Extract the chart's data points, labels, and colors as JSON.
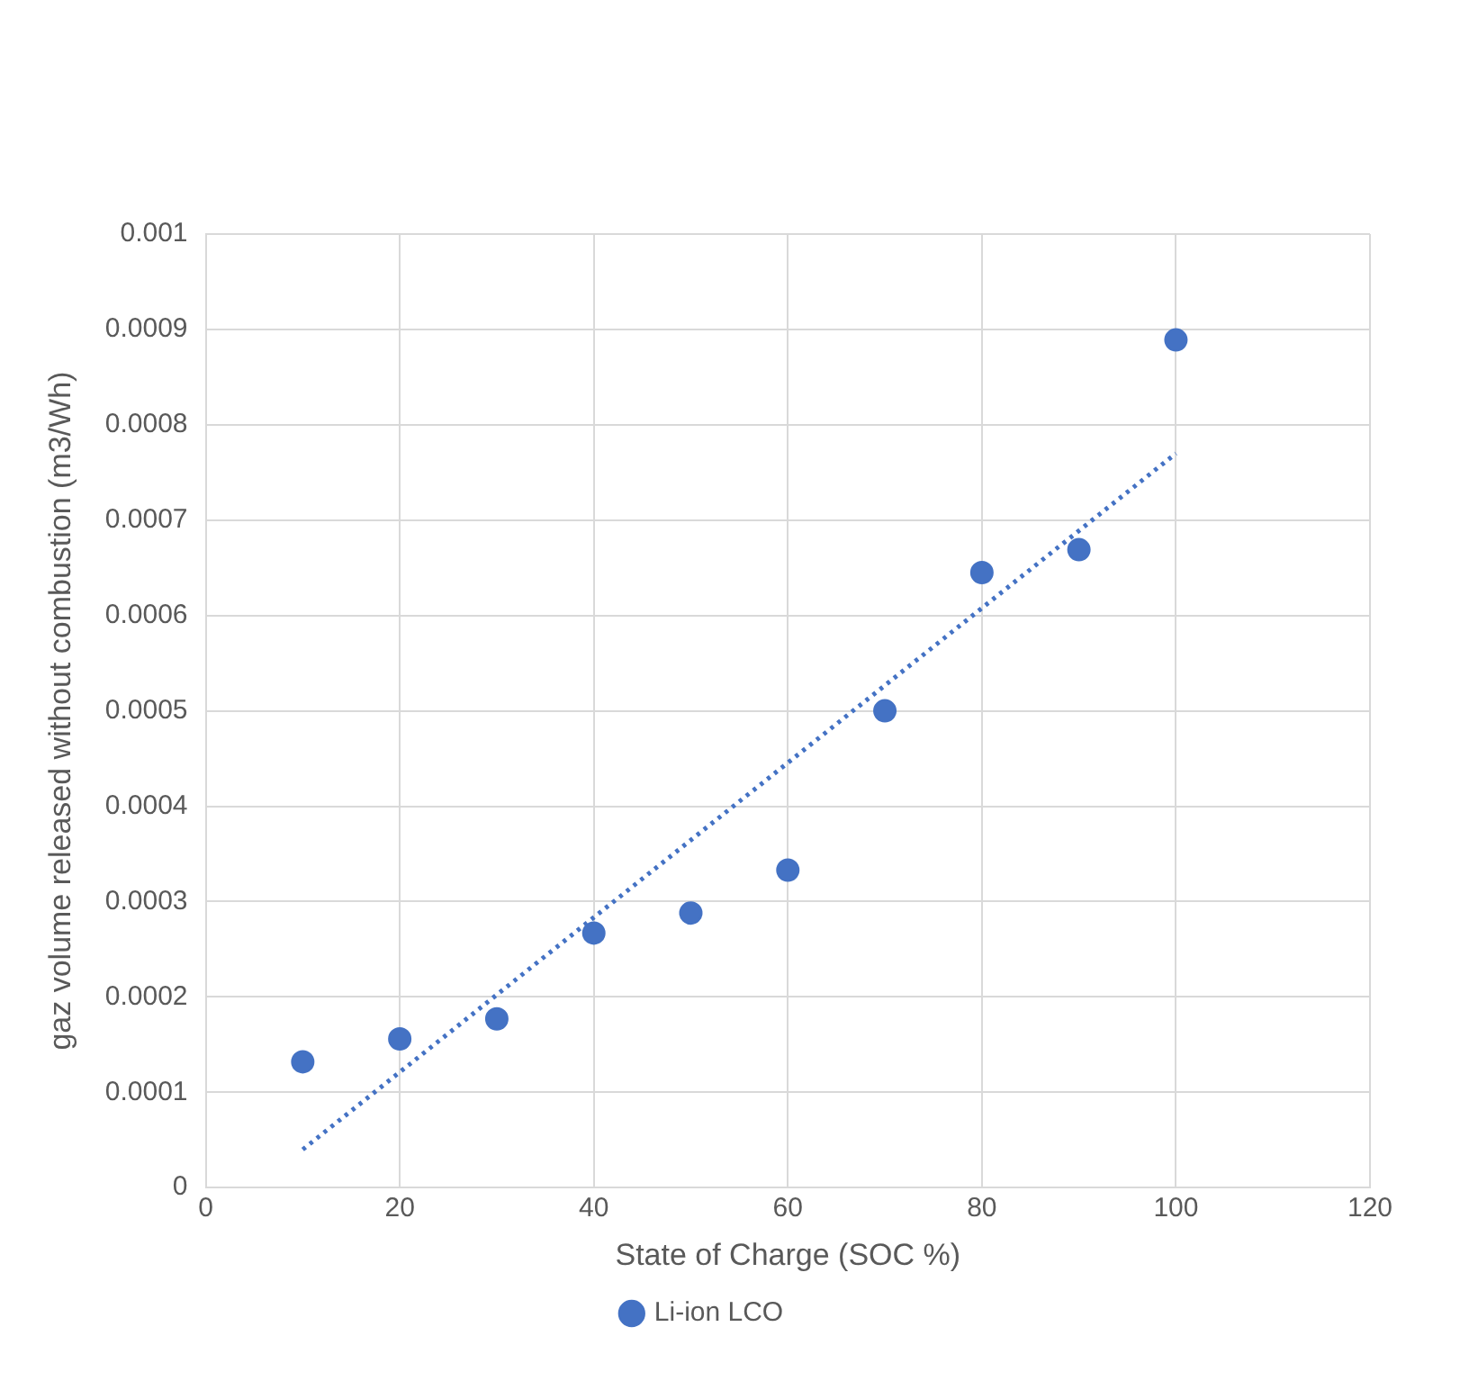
{
  "chart_data": {
    "type": "scatter",
    "xlabel": "State of Charge (SOC %)",
    "ylabel": "gaz volume released without combustion (m3/Wh)",
    "xlim": [
      0,
      120
    ],
    "xticks": [
      0,
      20,
      40,
      60,
      80,
      100,
      120
    ],
    "ylim": [
      0,
      0.001
    ],
    "yticks": [
      0,
      0.0001,
      0.0002,
      0.0003,
      0.0004,
      0.0005,
      0.0006,
      0.0007,
      0.0008,
      0.0009,
      0.001
    ],
    "grid": true,
    "legend": "bottom",
    "marker": "circle",
    "series": [
      {
        "name": "Li-ion LCO",
        "color": "#4472c4",
        "x": [
          10,
          20,
          30,
          40,
          50,
          60,
          70,
          80,
          90,
          100
        ],
        "values": [
          0.000132,
          0.000156,
          0.000177,
          0.000267,
          0.000288,
          0.000333,
          0.0005,
          0.000645,
          0.000669,
          0.000889
        ]
      },
      {
        "type": "line",
        "line_style": "dotted",
        "marker": "none",
        "color": "#4472c4",
        "x": [
          10,
          100
        ],
        "values": [
          4e-05,
          0.00077
        ]
      }
    ]
  }
}
